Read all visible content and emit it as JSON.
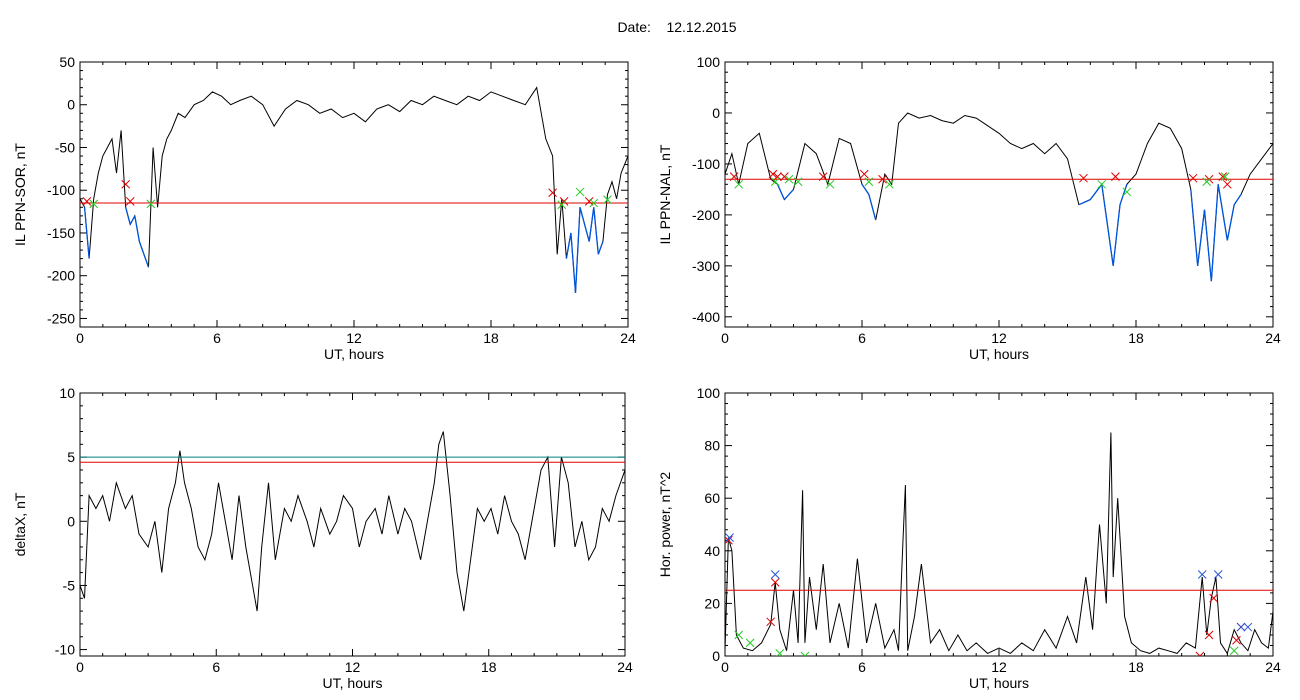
{
  "header": {
    "date_label": "Date:",
    "date_value": "12.12.2015"
  },
  "colors": {
    "trace": "#000000",
    "disturbed": "#0055dd",
    "threshold_red": "#e00000",
    "threshold_teal": "#008080",
    "marker_red": "#e00000",
    "marker_green": "#22cc22",
    "marker_blue": "#2255dd"
  },
  "chart_data": [
    {
      "type": "line",
      "xlabel": "UT, hours",
      "ylabel": "IL PPN-SOR, nT",
      "xlim": [
        0,
        24
      ],
      "ylim": [
        -260,
        50
      ],
      "xticks": [
        "0",
        "6",
        "12",
        "18",
        "24"
      ],
      "yticks": [
        "50",
        "0",
        "-50",
        "-100",
        "-150",
        "-200",
        "-250"
      ],
      "ytick_values": [
        50,
        0,
        -50,
        -100,
        -150,
        -200,
        -250
      ],
      "thresholds": [
        {
          "value": -115,
          "color": "red"
        }
      ],
      "series": [
        {
          "color": "black",
          "x": [
            0,
            0.2,
            0.4,
            0.6,
            0.8,
            1.0,
            1.2,
            1.4,
            1.6,
            1.8,
            2.0,
            2.2,
            2.4,
            2.6,
            2.8,
            3.0,
            3.2,
            3.4,
            3.6,
            3.8,
            4.0,
            4.3,
            4.6,
            5.0,
            5.4,
            5.8,
            6.2,
            6.6,
            7.0,
            7.5,
            8.0,
            8.5,
            9.0,
            9.5,
            10.0,
            10.5,
            11.0,
            11.5,
            12.0,
            12.5,
            13.0,
            13.5,
            14.0,
            14.5,
            15.0,
            15.5,
            16.0,
            16.5,
            17.0,
            17.5,
            18.0,
            18.5,
            19.0,
            19.5,
            20.0,
            20.4,
            20.7,
            20.9,
            21.1,
            21.3,
            21.5,
            21.7,
            21.9,
            22.1,
            22.3,
            22.5,
            22.7,
            22.9,
            23.1,
            23.3,
            23.5,
            23.7,
            24.0
          ],
          "y": [
            -110,
            -120,
            -180,
            -110,
            -80,
            -60,
            -50,
            -40,
            -80,
            -30,
            -120,
            -140,
            -130,
            -160,
            -175,
            -190,
            -50,
            -120,
            -60,
            -40,
            -30,
            -10,
            -15,
            0,
            5,
            15,
            10,
            0,
            5,
            10,
            0,
            -25,
            -5,
            5,
            0,
            -10,
            -5,
            -15,
            -10,
            -20,
            -5,
            0,
            -8,
            5,
            0,
            10,
            5,
            0,
            10,
            5,
            15,
            10,
            5,
            0,
            20,
            -40,
            -60,
            -175,
            -110,
            -180,
            -150,
            -220,
            -120,
            -140,
            -160,
            -120,
            -175,
            -160,
            -105,
            -90,
            -110,
            -80,
            -60
          ]
        }
      ],
      "markers": {
        "red": [
          [
            0.3,
            -113
          ],
          [
            2.0,
            -93
          ],
          [
            2.2,
            -113
          ],
          [
            20.7,
            -103
          ],
          [
            21.2,
            -113
          ],
          [
            22.3,
            -113
          ]
        ],
        "green": [
          [
            0.6,
            -116
          ],
          [
            3.1,
            -116
          ],
          [
            21.1,
            -117
          ],
          [
            21.9,
            -102
          ],
          [
            22.5,
            -115
          ],
          [
            23.1,
            -111
          ]
        ]
      }
    },
    {
      "type": "line",
      "xlabel": "UT, hours",
      "ylabel": "IL PPN-NAL, nT",
      "xlim": [
        0,
        24
      ],
      "ylim": [
        -420,
        100
      ],
      "xticks": [
        "0",
        "6",
        "12",
        "18",
        "24"
      ],
      "yticks": [
        "100",
        "0",
        "-100",
        "-200",
        "-300",
        "-400"
      ],
      "ytick_values": [
        100,
        0,
        -100,
        -200,
        -300,
        -400
      ],
      "thresholds": [
        {
          "value": -130,
          "color": "red"
        }
      ],
      "series": [
        {
          "color": "black",
          "x": [
            0,
            0.3,
            0.6,
            1.0,
            1.5,
            2.0,
            2.3,
            2.6,
            3.0,
            3.5,
            4.0,
            4.5,
            5.0,
            5.5,
            6.0,
            6.3,
            6.6,
            7.0,
            7.3,
            7.6,
            8.0,
            8.5,
            9.0,
            9.5,
            10.0,
            10.5,
            11.0,
            11.5,
            12.0,
            12.5,
            13.0,
            13.5,
            14.0,
            14.5,
            15.0,
            15.5,
            16.0,
            16.5,
            17.0,
            17.3,
            17.6,
            18.0,
            18.5,
            19.0,
            19.5,
            20.0,
            20.4,
            20.7,
            21.0,
            21.3,
            21.6,
            22.0,
            22.3,
            22.6,
            23.0,
            23.5,
            24.0
          ],
          "y": [
            -120,
            -80,
            -140,
            -60,
            -40,
            -130,
            -140,
            -170,
            -150,
            -60,
            -80,
            -140,
            -50,
            -60,
            -140,
            -160,
            -210,
            -120,
            -140,
            -20,
            0,
            -10,
            -5,
            -15,
            -20,
            -5,
            -10,
            -25,
            -40,
            -60,
            -70,
            -60,
            -80,
            -60,
            -90,
            -180,
            -170,
            -140,
            -300,
            -180,
            -140,
            -120,
            -60,
            -20,
            -30,
            -70,
            -150,
            -300,
            -190,
            -330,
            -140,
            -250,
            -180,
            -160,
            -120,
            -90,
            -60
          ]
        }
      ],
      "markers": {
        "red": [
          [
            0.4,
            -125
          ],
          [
            2.1,
            -120
          ],
          [
            2.3,
            -125
          ],
          [
            2.6,
            -125
          ],
          [
            4.3,
            -125
          ],
          [
            6.1,
            -120
          ],
          [
            6.9,
            -130
          ],
          [
            15.7,
            -128
          ],
          [
            17.1,
            -125
          ],
          [
            20.5,
            -128
          ],
          [
            21.2,
            -130
          ],
          [
            21.8,
            -125
          ],
          [
            22.0,
            -140
          ]
        ],
        "green": [
          [
            0.6,
            -140
          ],
          [
            2.2,
            -135
          ],
          [
            2.8,
            -130
          ],
          [
            3.2,
            -135
          ],
          [
            4.6,
            -140
          ],
          [
            6.3,
            -135
          ],
          [
            7.2,
            -140
          ],
          [
            16.5,
            -140
          ],
          [
            17.6,
            -155
          ],
          [
            21.1,
            -135
          ],
          [
            21.9,
            -125
          ]
        ]
      }
    },
    {
      "type": "line",
      "xlabel": "UT, hours",
      "ylabel": "deltaX, nT",
      "xlim": [
        0,
        24
      ],
      "ylim": [
        -10.5,
        10
      ],
      "xticks": [
        "0",
        "6",
        "12",
        "18",
        "24"
      ],
      "yticks": [
        "10",
        "5",
        "0",
        "-5",
        "-10"
      ],
      "ytick_values": [
        10,
        5,
        0,
        -5,
        -10
      ],
      "thresholds": [
        {
          "value": 5.0,
          "color": "teal"
        },
        {
          "value": 4.6,
          "color": "red"
        }
      ],
      "series": [
        {
          "color": "black",
          "x": [
            0,
            0.2,
            0.4,
            0.7,
            1.0,
            1.3,
            1.6,
            2.0,
            2.3,
            2.6,
            3.0,
            3.3,
            3.6,
            3.9,
            4.2,
            4.4,
            4.6,
            4.9,
            5.2,
            5.5,
            5.8,
            6.1,
            6.4,
            6.7,
            7.0,
            7.3,
            7.6,
            7.8,
            8.0,
            8.3,
            8.6,
            9.0,
            9.3,
            9.6,
            10.0,
            10.3,
            10.6,
            11.0,
            11.3,
            11.6,
            12.0,
            12.3,
            12.6,
            13.0,
            13.3,
            13.6,
            14.0,
            14.3,
            14.6,
            15.0,
            15.3,
            15.6,
            15.8,
            16.0,
            16.3,
            16.6,
            16.9,
            17.2,
            17.5,
            17.8,
            18.1,
            18.4,
            18.7,
            19.0,
            19.3,
            19.6,
            20.0,
            20.3,
            20.6,
            20.9,
            21.2,
            21.5,
            21.8,
            22.1,
            22.4,
            22.7,
            23.0,
            23.3,
            23.6,
            24.0
          ],
          "y": [
            -5,
            -6,
            2,
            1,
            2,
            0,
            3,
            1,
            2,
            -1,
            -2,
            0,
            -4,
            1,
            3,
            5.5,
            3,
            1,
            -2,
            -3,
            -1,
            3,
            0,
            -3,
            2,
            -2,
            -5,
            -7,
            -2,
            3,
            -3,
            1,
            0,
            2,
            0,
            -2,
            1,
            -1,
            0,
            2,
            1,
            -2,
            0,
            1,
            -1,
            2,
            -1,
            1,
            0,
            -3,
            0,
            3,
            6,
            7,
            2,
            -4,
            -7,
            -3,
            1,
            0,
            1,
            -1,
            2,
            0,
            -1,
            -3,
            1,
            4,
            5,
            -2,
            5,
            3,
            -2,
            0,
            -3,
            -2,
            1,
            0,
            2,
            4
          ]
        }
      ],
      "markers": {
        "red": [],
        "green": []
      }
    },
    {
      "type": "line",
      "xlabel": "UT, hours",
      "ylabel": "Hor. power, nT^2",
      "xlim": [
        0,
        24
      ],
      "ylim": [
        0,
        100
      ],
      "xticks": [
        "0",
        "6",
        "12",
        "18",
        "24"
      ],
      "yticks": [
        "100",
        "80",
        "60",
        "40",
        "20",
        "0"
      ],
      "ytick_values": [
        100,
        80,
        60,
        40,
        20,
        0
      ],
      "thresholds": [
        {
          "value": 25,
          "color": "red"
        }
      ],
      "series": [
        {
          "color": "black",
          "x": [
            0,
            0.15,
            0.3,
            0.5,
            0.8,
            1.2,
            1.6,
            2.0,
            2.2,
            2.4,
            2.7,
            3.0,
            3.2,
            3.4,
            3.5,
            3.7,
            4.0,
            4.3,
            4.6,
            5.0,
            5.4,
            5.8,
            6.2,
            6.6,
            7.0,
            7.4,
            7.6,
            7.8,
            7.9,
            8.0,
            8.3,
            8.6,
            9.0,
            9.4,
            9.8,
            10.2,
            10.6,
            11.0,
            11.5,
            12.0,
            12.5,
            13.0,
            13.5,
            14.0,
            14.5,
            15.0,
            15.4,
            15.8,
            16.1,
            16.4,
            16.7,
            16.9,
            17.0,
            17.2,
            17.5,
            17.8,
            18.2,
            18.6,
            19.0,
            19.4,
            19.8,
            20.2,
            20.6,
            20.9,
            21.1,
            21.3,
            21.5,
            21.7,
            22.0,
            22.3,
            22.6,
            22.9,
            23.2,
            23.5,
            23.8,
            24.0
          ],
          "y": [
            2,
            45,
            40,
            8,
            3,
            2,
            5,
            12,
            28,
            10,
            2,
            25,
            5,
            63,
            5,
            30,
            10,
            35,
            5,
            20,
            3,
            37,
            5,
            20,
            3,
            10,
            2,
            45,
            65,
            2,
            15,
            35,
            5,
            10,
            2,
            8,
            2,
            5,
            1,
            3,
            1,
            5,
            2,
            10,
            3,
            15,
            5,
            30,
            10,
            50,
            20,
            85,
            30,
            60,
            15,
            5,
            2,
            1,
            3,
            2,
            1,
            5,
            3,
            30,
            8,
            22,
            30,
            5,
            1,
            10,
            5,
            2,
            10,
            5,
            3,
            17
          ]
        }
      ],
      "markers": {
        "red": [
          [
            0.15,
            44
          ],
          [
            2.0,
            13
          ],
          [
            2.2,
            28
          ],
          [
            20.8,
            0
          ],
          [
            21.2,
            8
          ],
          [
            21.4,
            22
          ],
          [
            22.4,
            6
          ],
          [
            22.6,
            11
          ]
        ],
        "blue": [
          [
            0.2,
            45
          ],
          [
            2.2,
            31
          ],
          [
            20.9,
            31
          ],
          [
            21.6,
            31
          ],
          [
            22.6,
            11
          ],
          [
            22.9,
            11
          ]
        ],
        "green": [
          [
            0.6,
            8
          ],
          [
            1.1,
            5
          ],
          [
            2.4,
            1
          ],
          [
            3.5,
            0
          ],
          [
            22.3,
            2
          ]
        ]
      }
    }
  ]
}
